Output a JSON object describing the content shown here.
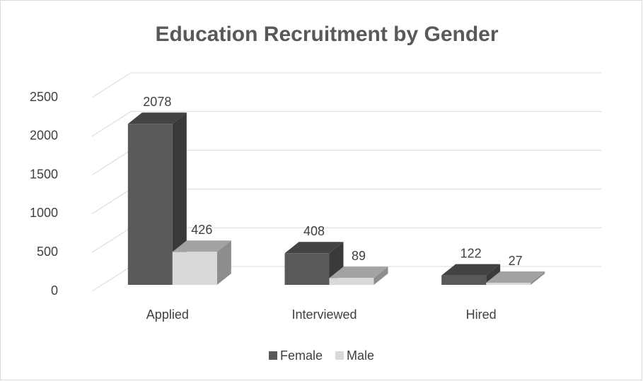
{
  "chart_data": {
    "type": "bar3d",
    "title": "Education Recruitment by Gender",
    "categories": [
      "Applied",
      "Interviewed",
      "Hired"
    ],
    "series": [
      {
        "name": "Female",
        "color": "#595959",
        "values": [
          2078,
          408,
          122
        ]
      },
      {
        "name": "Male",
        "color": "#d9d9d9",
        "values": [
          426,
          89,
          27
        ]
      }
    ],
    "ylim": [
      0,
      2500
    ],
    "yticks": [
      0,
      500,
      1000,
      1500,
      2000,
      2500
    ],
    "grid": true,
    "legend": "bottom"
  }
}
